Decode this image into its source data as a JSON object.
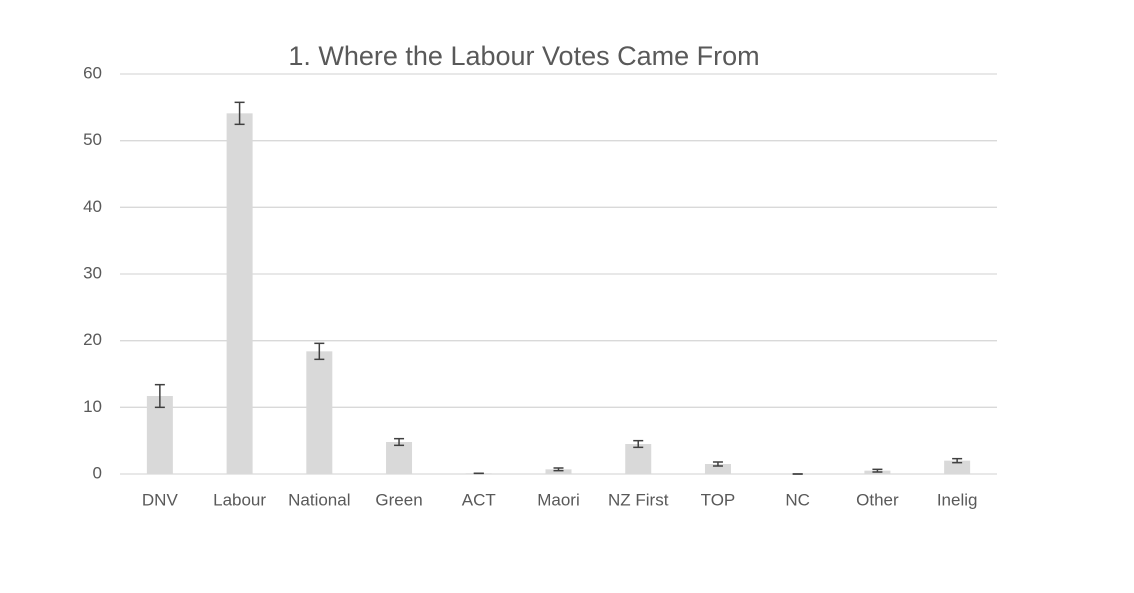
{
  "chart_data": {
    "type": "bar",
    "title": "1. Where the Labour Votes Came From",
    "categories": [
      "DNV",
      "Labour",
      "National",
      "Green",
      "ACT",
      "Maori",
      "NZ First",
      "TOP",
      "NC",
      "Other",
      "Inelig"
    ],
    "values": [
      11.7,
      54.1,
      18.4,
      4.8,
      0.1,
      0.7,
      4.5,
      1.5,
      0,
      0.5,
      2.0
    ],
    "errors": [
      1.7,
      1.65,
      1.2,
      0.5,
      0,
      0.2,
      0.5,
      0.3,
      0,
      0.2,
      0.3
    ],
    "color": "#d9d9d9",
    "error_color": "#404040",
    "ylim": [
      0,
      60
    ],
    "yticks": [
      0,
      10,
      20,
      30,
      40,
      50,
      60
    ],
    "grid": true
  }
}
